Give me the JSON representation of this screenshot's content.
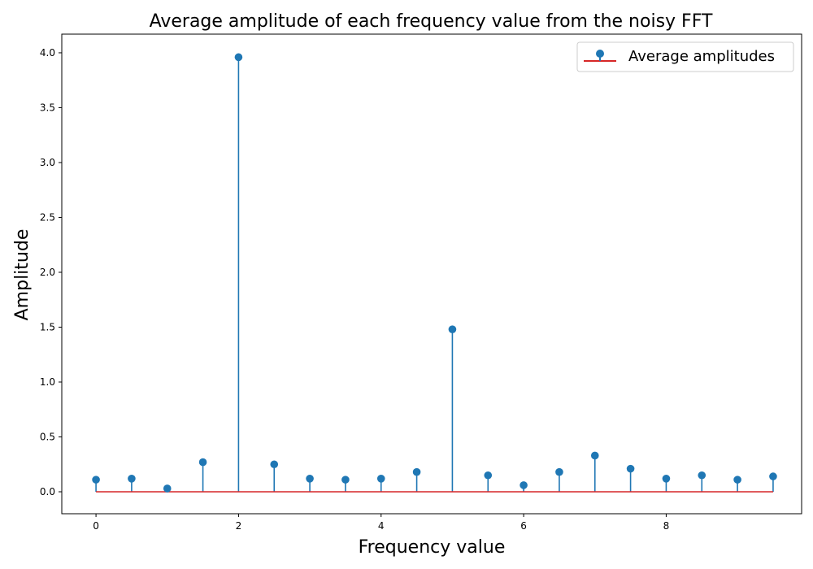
{
  "chart_data": {
    "type": "stem",
    "title": "Average amplitude of each frequency value from the noisy FFT",
    "xlabel": "Frequency value",
    "ylabel": "Amplitude",
    "xlim": [
      -0.48,
      9.9
    ],
    "ylim": [
      -0.2,
      4.17
    ],
    "xticks": [
      0,
      2,
      4,
      6,
      8
    ],
    "yticks": [
      0.0,
      0.5,
      1.0,
      1.5,
      2.0,
      2.5,
      3.0,
      3.5,
      4.0
    ],
    "ytick_labels": [
      "0.0",
      "0.5",
      "1.0",
      "1.5",
      "2.0",
      "2.5",
      "3.0",
      "3.5",
      "4.0"
    ],
    "grid": false,
    "legend": {
      "position": "upper right",
      "entries": [
        "Average amplitudes"
      ]
    },
    "series": [
      {
        "name": "Average amplitudes",
        "marker_color": "#1f77b4",
        "baseline_color": "#d62728",
        "x": [
          0.0,
          0.5,
          1.0,
          1.5,
          2.0,
          2.5,
          3.0,
          3.5,
          4.0,
          4.5,
          5.0,
          5.5,
          6.0,
          6.5,
          7.0,
          7.5,
          8.0,
          8.5,
          9.0,
          9.5
        ],
        "y": [
          0.11,
          0.12,
          0.03,
          0.27,
          3.96,
          0.25,
          0.12,
          0.11,
          0.12,
          0.18,
          1.48,
          0.15,
          0.06,
          0.18,
          0.33,
          0.21,
          0.12,
          0.15,
          0.11,
          0.14
        ]
      }
    ]
  }
}
